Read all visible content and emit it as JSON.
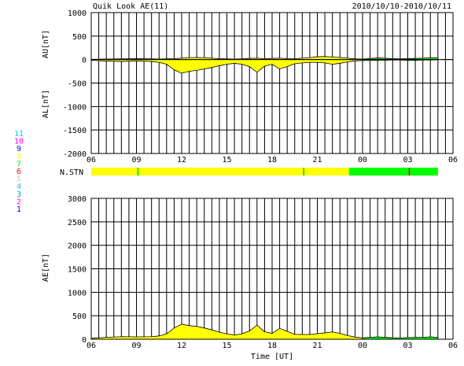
{
  "header": {
    "title": "Quik Look AE(11)",
    "date_range": "2010/10/10-2010/10/11"
  },
  "station_legend": {
    "numbers": [
      "11",
      "10",
      "9",
      "8",
      "7",
      "6",
      "5",
      "4",
      "3",
      "2",
      "1"
    ],
    "colors": [
      "#00c8ff",
      "#ff00ff",
      "#0000ff",
      "#ffff00",
      "#00ff00",
      "#ff0000",
      "#c8c8c8",
      "#00c8ff",
      "#00aaaa",
      "#ff00ff",
      "#0000ff"
    ]
  },
  "chart_data": [
    {
      "type": "area",
      "ylabel_top": "AU[nT]",
      "ylabel_bottom": "AL[nT]",
      "xlim_hours": [
        6,
        30
      ],
      "ylim": [
        -2000,
        1000
      ],
      "yticks": [
        1000,
        500,
        0,
        -500,
        -1000,
        -1500,
        -2000
      ],
      "ytick_labels": [
        "1000",
        "500",
        "0",
        "-500",
        "-1000",
        "-1500",
        "-2000"
      ],
      "xtick_labels": [
        "06",
        "09",
        "12",
        "15",
        "18",
        "21",
        "00",
        "03",
        "06"
      ],
      "grid": true,
      "series": [
        {
          "color": "#ffff00",
          "x": [
            6.0,
            7.0,
            8.0,
            9.0,
            10.0,
            10.5,
            11.0,
            11.5,
            12.0,
            12.5,
            13.0,
            13.5,
            14.0,
            14.5,
            15.0,
            15.5,
            16.0,
            16.5,
            17.0,
            17.5,
            18.0,
            18.5,
            19.0,
            19.5,
            20.0,
            20.5,
            21.0,
            21.5,
            22.0,
            22.5,
            23.0,
            23.5,
            24.0
          ],
          "au": [
            5,
            10,
            15,
            20,
            15,
            10,
            15,
            20,
            30,
            40,
            45,
            40,
            30,
            20,
            15,
            10,
            15,
            25,
            30,
            20,
            25,
            30,
            20,
            15,
            30,
            40,
            60,
            65,
            55,
            45,
            30,
            15,
            10
          ],
          "al": [
            -15,
            -30,
            -40,
            -30,
            -40,
            -60,
            -100,
            -220,
            -290,
            -250,
            -230,
            -200,
            -170,
            -130,
            -100,
            -80,
            -100,
            -150,
            -270,
            -140,
            -100,
            -200,
            -150,
            -90,
            -70,
            -60,
            -60,
            -70,
            -100,
            -80,
            -50,
            -30,
            -20
          ]
        },
        {
          "color": "#00ff00",
          "x": [
            24.0,
            25.0,
            26.0,
            26.5,
            27.0,
            27.5,
            28.0,
            28.5,
            29.0
          ],
          "au": [
            10,
            35,
            20,
            15,
            20,
            25,
            30,
            40,
            35
          ],
          "al": [
            -20,
            -15,
            -10,
            -10,
            -15,
            -15,
            -10,
            -10,
            -5
          ]
        }
      ]
    },
    {
      "type": "area",
      "ylabel": "AE[nT]",
      "xlabel": "Time [UT]",
      "xlim_hours": [
        6,
        30
      ],
      "ylim": [
        0,
        3000
      ],
      "yticks": [
        0,
        500,
        1000,
        1500,
        2000,
        2500,
        3000
      ],
      "ytick_labels": [
        "0",
        "500",
        "1000",
        "1500",
        "2000",
        "2500",
        "3000"
      ],
      "xtick_labels": [
        "06",
        "09",
        "12",
        "15",
        "18",
        "21",
        "00",
        "03",
        "06"
      ],
      "grid": true,
      "series": [
        {
          "color": "#ffff00",
          "x": [
            6.0,
            7.0,
            8.0,
            9.0,
            10.0,
            10.5,
            11.0,
            11.5,
            12.0,
            12.5,
            13.0,
            13.5,
            14.0,
            14.5,
            15.0,
            15.5,
            16.0,
            16.5,
            17.0,
            17.5,
            18.0,
            18.5,
            19.0,
            19.5,
            20.0,
            20.5,
            21.0,
            21.5,
            22.0,
            22.5,
            23.0,
            23.5,
            24.0
          ],
          "values": [
            20,
            40,
            55,
            50,
            55,
            70,
            115,
            240,
            320,
            290,
            275,
            240,
            200,
            150,
            115,
            90,
            115,
            175,
            300,
            160,
            125,
            230,
            170,
            105,
            100,
            100,
            120,
            135,
            155,
            125,
            80,
            45,
            30
          ]
        },
        {
          "color": "#00ff00",
          "x": [
            24.0,
            25.0,
            26.0,
            26.5,
            27.0,
            27.5,
            28.0,
            28.5,
            29.0
          ],
          "values": [
            30,
            50,
            30,
            25,
            35,
            40,
            40,
            50,
            40
          ]
        }
      ]
    }
  ],
  "station_bar": {
    "label": "N.STN",
    "segments": [
      {
        "from": 6.0,
        "to": 23.1,
        "color": "#ffff00"
      },
      {
        "from": 23.1,
        "to": 29.0,
        "color": "#00ff00"
      }
    ],
    "markers": [
      {
        "at": 9.1,
        "color": "#00cc00"
      },
      {
        "at": 20.1,
        "color": "#00cc00"
      },
      {
        "at": 27.1,
        "color": "#ff0000"
      }
    ]
  }
}
